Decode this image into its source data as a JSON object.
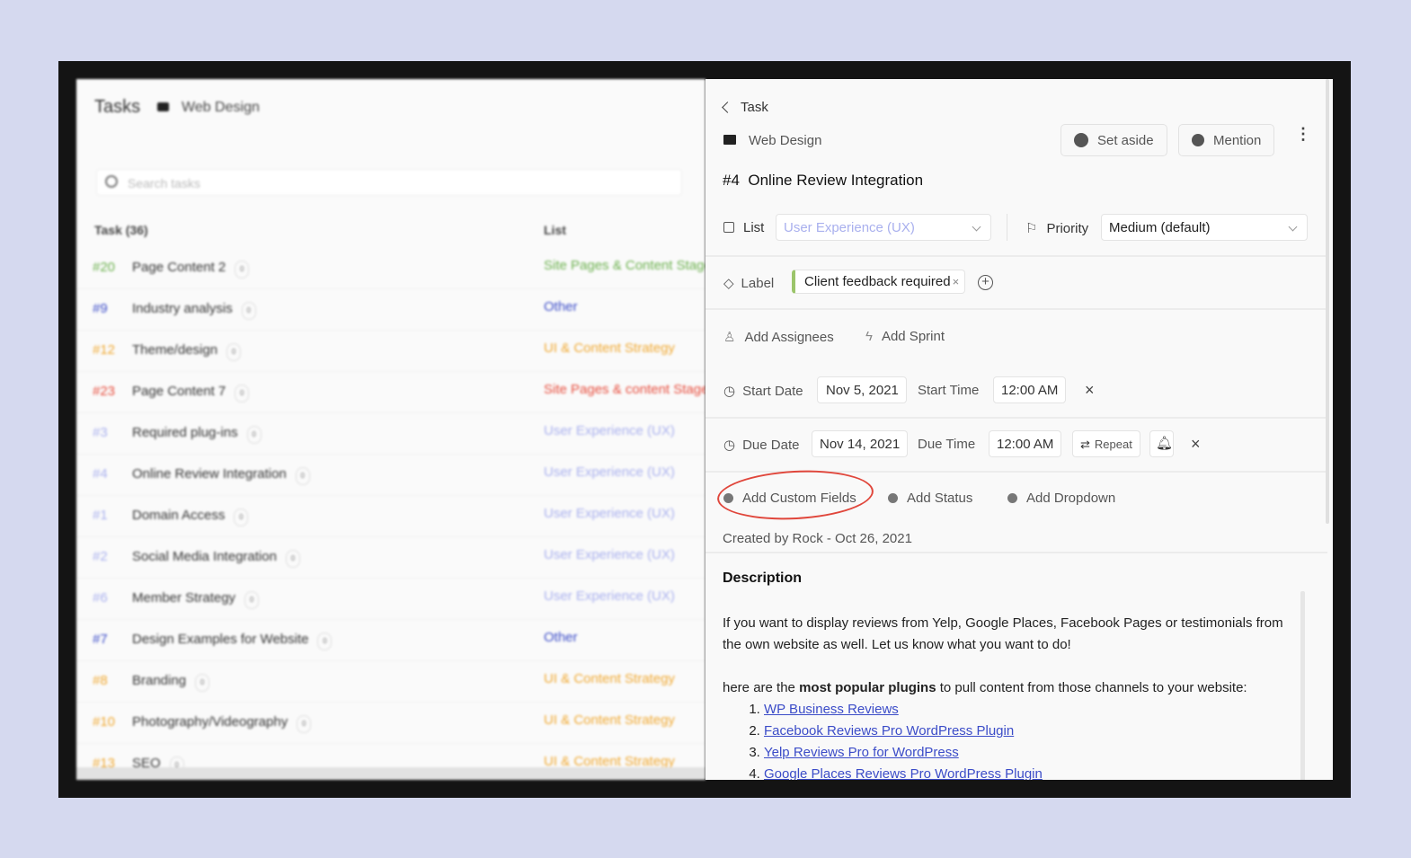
{
  "left": {
    "title": "Tasks",
    "project": "Web Design",
    "search_placeholder": "Search tasks",
    "col_task": "Task (36)",
    "col_list": "List",
    "rows": [
      {
        "num": "#20",
        "name": "Page Content 2",
        "list": "Site Pages & Content Stage",
        "color": "#6ab04c"
      },
      {
        "num": "#9",
        "name": "Industry analysis",
        "list": "Other",
        "color": "#3b4cc8"
      },
      {
        "num": "#12",
        "name": "Theme/design",
        "list": "UI & Content Strategy",
        "color": "#f0a830"
      },
      {
        "num": "#23",
        "name": "Page Content 7",
        "list": "Site Pages & content Stage",
        "color": "#e74c3c"
      },
      {
        "num": "#3",
        "name": "Required plug-ins",
        "list": "User Experience (UX)",
        "color": "#a9b0ee"
      },
      {
        "num": "#4",
        "name": "Online Review Integration",
        "list": "User Experience (UX)",
        "color": "#a9b0ee"
      },
      {
        "num": "#1",
        "name": "Domain Access",
        "list": "User Experience (UX)",
        "color": "#a9b0ee"
      },
      {
        "num": "#2",
        "name": "Social Media Integration",
        "list": "User Experience (UX)",
        "color": "#a9b0ee"
      },
      {
        "num": "#6",
        "name": "Member Strategy",
        "list": "User Experience (UX)",
        "color": "#a9b0ee"
      },
      {
        "num": "#7",
        "name": "Design Examples for Website",
        "list": "Other",
        "color": "#3b4cc8"
      },
      {
        "num": "#8",
        "name": "Branding",
        "list": "UI & Content Strategy",
        "color": "#f0a830"
      },
      {
        "num": "#10",
        "name": "Photography/Videography",
        "list": "UI & Content Strategy",
        "color": "#f0a830"
      },
      {
        "num": "#13",
        "name": "SEO",
        "list": "UI & Content Strategy",
        "color": "#f0a830"
      }
    ]
  },
  "task": {
    "back_label": "Task",
    "project": "Web Design",
    "set_aside": "Set aside",
    "mention": "Mention",
    "number": "#4",
    "title": "Online Review Integration",
    "list_label": "List",
    "list_value": "User Experience (UX)",
    "priority_label": "Priority",
    "priority_value": "Medium (default)",
    "label_label": "Label",
    "label_tag": "Client feedback required",
    "add_assignees": "Add Assignees",
    "add_sprint": "Add Sprint",
    "start_date_label": "Start Date",
    "start_date": "Nov 5, 2021",
    "start_time_label": "Start Time",
    "start_time": "12:00 AM",
    "due_date_label": "Due Date",
    "due_date": "Nov 14, 2021",
    "due_time_label": "Due Time",
    "due_time": "12:00 AM",
    "repeat": "Repeat",
    "add_custom_fields": "Add Custom Fields",
    "add_status": "Add Status",
    "add_dropdown": "Add Dropdown",
    "created": "Created by Rock - Oct 26, 2021",
    "description_title": "Description",
    "desc_p1": "If you want to display reviews from Yelp, Google Places, Facebook Pages or testimonials from the own website as well. Let us know what you want to do!",
    "desc_p2_a": "here are the ",
    "desc_p2_b": "most popular plugins",
    "desc_p2_c": " to pull content from those channels to your website:",
    "plugins": [
      "WP Business Reviews",
      "Facebook Reviews Pro WordPress Plugin",
      "Yelp Reviews Pro for WordPress",
      "Google Places Reviews Pro WordPress Plugin"
    ]
  },
  "colors": {
    "accent_link": "#3b4cc8",
    "annotation": "#e0463b",
    "label_tag": "#9cc56b",
    "list_value": "#a9b0ee"
  }
}
